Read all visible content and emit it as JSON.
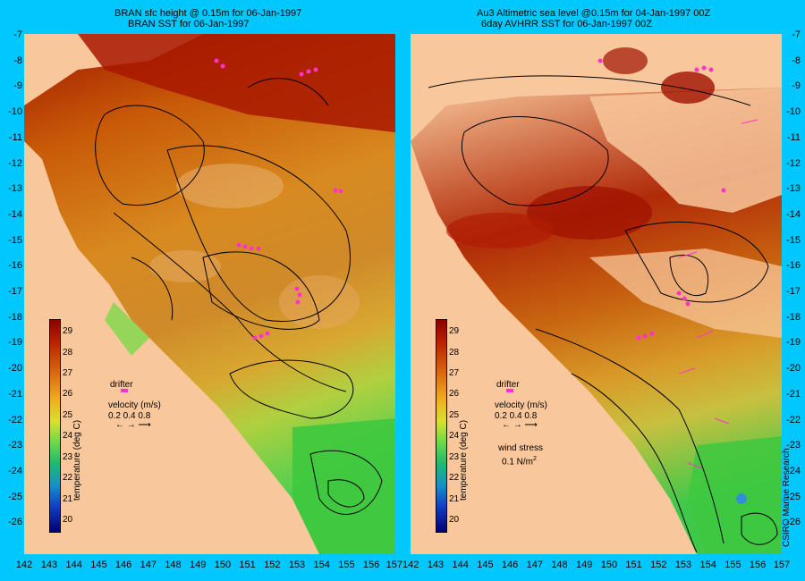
{
  "left_panel": {
    "title_line1": "BRAN sfc height @ 0.15m  for 06-Jan-1997",
    "title_line2": "BRAN SST for 06-Jan-1997"
  },
  "right_panel": {
    "title_line1": "Au3 Altimetric sea level  @0.15m  for 04-Jan-1997 00Z",
    "title_line2": "6day AVHRR SST for 06-Jan-1997 00Z"
  },
  "lat_ticks": [
    "-7",
    "-8",
    "-9",
    "-10",
    "-11",
    "-12",
    "-13",
    "-14",
    "-15",
    "-16",
    "-17",
    "-18",
    "-19",
    "-20",
    "-21",
    "-22",
    "-23",
    "-24",
    "-25",
    "-26"
  ],
  "lon_ticks_left": [
    "142",
    "143",
    "144",
    "145",
    "146",
    "147",
    "148",
    "149",
    "150",
    "151",
    "152",
    "153",
    "154",
    "155",
    "156",
    "157"
  ],
  "lon_ticks_right": [
    "143",
    "144",
    "145",
    "146",
    "147",
    "148",
    "149",
    "150",
    "151",
    "152",
    "153",
    "154",
    "155",
    "156",
    "157"
  ],
  "lon_tick_shared": "157142",
  "legend": {
    "drifter": "drifter",
    "velocity": "velocity (m/s)",
    "velocity_scale": "0.2 0.4 0.8",
    "wind_stress": "wind stress",
    "wind_stress_value": "0.1 N/m",
    "wind_stress_exp": "2",
    "colorbar_title": "temperature (deg C)",
    "colorbar_ticks": [
      "29",
      "28",
      "27",
      "26",
      "25",
      "24",
      "23",
      "22",
      "21",
      "20"
    ],
    "colorbar_range": [
      19.5,
      29.6
    ]
  },
  "colors": {
    "background": "#00c8ff",
    "land": "#f8c79b",
    "drifter": "#ff33cc"
  },
  "credit": "CSIRO Marine Research"
}
